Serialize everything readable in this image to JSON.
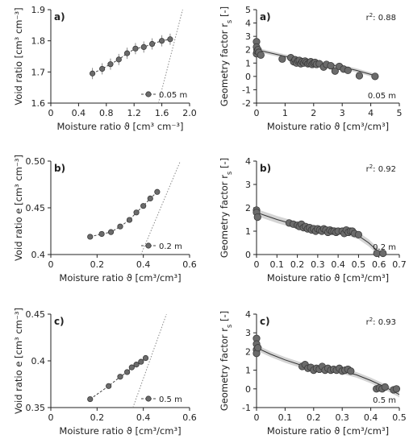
{
  "chart_data": [
    {
      "type": "scatter",
      "panel_label": "a)",
      "xlabel": "Moisture ratio ϑ [cm³ cm⁻³]",
      "ylabel": "Void ratio [cm³ cm⁻³]",
      "xlim": [
        0,
        2.0
      ],
      "ylim": [
        1.6,
        1.9
      ],
      "xticks": [
        "0",
        "0.4",
        "0.8",
        "1.2",
        "1.6",
        "2.0"
      ],
      "yticks": [
        "1.6",
        "1.7",
        "1.8",
        "1.9"
      ],
      "legend": "0.05 m",
      "legend_position": "bottom-right",
      "series": [
        {
          "x": [
            0.6,
            0.74,
            0.86,
            0.98,
            1.1,
            1.22,
            1.34,
            1.46,
            1.6,
            1.72
          ],
          "y": [
            1.695,
            1.71,
            1.725,
            1.74,
            1.76,
            1.775,
            1.78,
            1.79,
            1.8,
            1.805
          ],
          "yerr": 0.018
        }
      ],
      "saturation_line": {
        "x": [
          1.55,
          1.9
        ],
        "y": [
          1.6,
          1.9
        ]
      }
    },
    {
      "type": "scatter",
      "panel_label": "a)",
      "xlabel": "Moisture ratio ϑ [cm³/cm³]",
      "ylabel": "Geometry factor r",
      "ylabel_sub": "s",
      "ylabel_tail": " [-]",
      "r2_prefix": "r",
      "r2_text": ": 0.88",
      "xlim": [
        0,
        5
      ],
      "ylim": [
        -2,
        5
      ],
      "xticks": [
        "0",
        "1",
        "2",
        "3",
        "4",
        "5"
      ],
      "yticks": [
        "-2",
        "-1",
        "0",
        "1",
        "2",
        "3",
        "4",
        "5"
      ],
      "annotation": "0.05 m",
      "series": [
        {
          "x": [
            0,
            0,
            0,
            0.02,
            0.05,
            0.08,
            0.15,
            0.9,
            1.2,
            1.3,
            1.35,
            1.4,
            1.45,
            1.5,
            1.55,
            1.6,
            1.65,
            1.7,
            1.75,
            1.8,
            1.85,
            1.9,
            1.95,
            2.0,
            2.05,
            2.1,
            2.2,
            2.35,
            2.45,
            2.6,
            2.75,
            2.9,
            3.05,
            3.2,
            3.6,
            4.15
          ],
          "y": [
            2.6,
            2.2,
            1.7,
            1.9,
            2.0,
            1.8,
            1.6,
            1.3,
            1.4,
            1.1,
            1.25,
            1.0,
            1.15,
            1.2,
            0.95,
            1.1,
            1.0,
            1.15,
            1.05,
            0.95,
            1.0,
            1.1,
            0.9,
            1.0,
            1.05,
            0.9,
            0.95,
            0.7,
            0.9,
            0.8,
            0.4,
            0.75,
            0.55,
            0.45,
            0.05,
            0.0
          ]
        }
      ],
      "fit": {
        "x": [
          0,
          0.5,
          1,
          1.5,
          2,
          2.5,
          3,
          3.5,
          4,
          4.2
        ],
        "y": [
          2.0,
          1.75,
          1.5,
          1.3,
          1.1,
          0.9,
          0.7,
          0.45,
          0.15,
          0.0
        ]
      }
    },
    {
      "type": "scatter",
      "panel_label": "b)",
      "xlabel": "Moisture ratio ϑ [cm³/cm³]",
      "ylabel": "Void ratio e [cm³ cm⁻³]",
      "xlim": [
        0,
        0.6
      ],
      "ylim": [
        0.4,
        0.5
      ],
      "xticks": [
        "0",
        "0.2",
        "0.4",
        "0.6"
      ],
      "yticks": [
        "0.4",
        "0.45",
        "0.50"
      ],
      "legend": "0.2 m",
      "legend_position": "bottom-right",
      "series": [
        {
          "x": [
            0.17,
            0.22,
            0.26,
            0.3,
            0.34,
            0.37,
            0.4,
            0.43,
            0.46
          ],
          "y": [
            0.419,
            0.422,
            0.424,
            0.43,
            0.437,
            0.445,
            0.452,
            0.46,
            0.467
          ],
          "yerr": 0.002
        }
      ],
      "saturation_line": {
        "x": [
          0.39,
          0.56
        ],
        "y": [
          0.4,
          0.5
        ]
      }
    },
    {
      "type": "scatter",
      "panel_label": "b)",
      "xlabel": "Moisture ratio ϑ [cm³/cm³]",
      "ylabel": "Geometry factor r",
      "ylabel_sub": "s",
      "ylabel_tail": " [-]",
      "r2_prefix": "r",
      "r2_text": ": 0.92",
      "xlim": [
        0,
        0.7
      ],
      "ylim": [
        0,
        4
      ],
      "xticks": [
        "0",
        "0.1",
        "0.2",
        "0.3",
        "0.4",
        "0.5",
        "0.6",
        "0.7"
      ],
      "yticks": [
        "0",
        "1",
        "2",
        "3",
        "4"
      ],
      "annotation": "0.2 m",
      "series": [
        {
          "x": [
            0,
            0,
            0.005,
            0.16,
            0.18,
            0.2,
            0.21,
            0.22,
            0.23,
            0.24,
            0.25,
            0.26,
            0.27,
            0.28,
            0.29,
            0.3,
            0.31,
            0.32,
            0.33,
            0.34,
            0.35,
            0.36,
            0.37,
            0.38,
            0.39,
            0.4,
            0.42,
            0.43,
            0.44,
            0.45,
            0.46,
            0.47,
            0.48,
            0.5,
            0.59,
            0.62
          ],
          "y": [
            1.9,
            1.8,
            1.6,
            1.35,
            1.3,
            1.25,
            1.2,
            1.3,
            1.15,
            1.2,
            1.1,
            1.15,
            1.05,
            1.1,
            1.0,
            1.1,
            1.05,
            1.0,
            1.1,
            1.05,
            0.95,
            1.05,
            1.0,
            1.0,
            0.95,
            1.0,
            1.0,
            0.9,
            1.05,
            0.95,
            1.0,
            1.0,
            0.9,
            0.85,
            0.05,
            0.05
          ]
        }
      ],
      "fit": {
        "x": [
          0,
          0.1,
          0.2,
          0.3,
          0.4,
          0.45,
          0.5,
          0.55,
          0.6,
          0.62
        ],
        "y": [
          1.8,
          1.5,
          1.25,
          1.1,
          1.0,
          0.95,
          0.8,
          0.5,
          0.1,
          0.0
        ]
      }
    },
    {
      "type": "scatter",
      "panel_label": "c)",
      "xlabel": "Moisture ratio ϑ [cm³/cm³]",
      "ylabel": "Void ratio e [cm³ cm⁻³]",
      "xlim": [
        0,
        0.6
      ],
      "ylim": [
        0.35,
        0.45
      ],
      "xticks": [
        "0",
        "0.2",
        "0.4",
        "0.6"
      ],
      "yticks": [
        "0.35",
        "0.4",
        "0.45"
      ],
      "legend": "0.5 m",
      "legend_position": "bottom-right",
      "series": [
        {
          "x": [
            0.17,
            0.25,
            0.3,
            0.33,
            0.35,
            0.37,
            0.39,
            0.41
          ],
          "y": [
            0.359,
            0.373,
            0.383,
            0.388,
            0.393,
            0.396,
            0.399,
            0.403
          ],
          "yerr": 0.002
        }
      ],
      "saturation_line": {
        "x": [
          0.355,
          0.5
        ],
        "y": [
          0.35,
          0.45
        ]
      }
    },
    {
      "type": "scatter",
      "panel_label": "c)",
      "xlabel": "Moisture ratio ϑ [cm³/cm³]",
      "ylabel": "Geometry factor r",
      "ylabel_sub": "s",
      "ylabel_tail": " [-]",
      "r2_prefix": "r",
      "r2_text": ": 0.93",
      "xlim": [
        0,
        0.5
      ],
      "ylim": [
        -1,
        4
      ],
      "xticks": [
        "0",
        "0.1",
        "0.2",
        "0.3",
        "0.4",
        "0.5"
      ],
      "yticks": [
        "-1",
        "0",
        "1",
        "2",
        "3",
        "4"
      ],
      "annotation": "0.5 m",
      "series": [
        {
          "x": [
            0,
            0,
            0,
            0,
            0.005,
            0.16,
            0.17,
            0.18,
            0.19,
            0.2,
            0.21,
            0.22,
            0.23,
            0.24,
            0.25,
            0.26,
            0.27,
            0.28,
            0.29,
            0.3,
            0.31,
            0.32,
            0.33,
            0.42,
            0.43,
            0.44,
            0.45,
            0.48,
            0.49
          ],
          "y": [
            2.7,
            2.4,
            2.1,
            1.9,
            2.2,
            1.2,
            1.3,
            1.1,
            1.15,
            1.0,
            1.1,
            1.05,
            1.2,
            1.0,
            1.1,
            1.0,
            1.05,
            1.0,
            1.1,
            0.95,
            1.0,
            1.05,
            0.95,
            0.0,
            0.05,
            0.0,
            0.1,
            -0.05,
            0.0
          ]
        }
      ],
      "fit": {
        "x": [
          0,
          0.05,
          0.1,
          0.15,
          0.2,
          0.25,
          0.3,
          0.35,
          0.4,
          0.45,
          0.5
        ],
        "y": [
          2.2,
          1.85,
          1.55,
          1.3,
          1.15,
          1.05,
          0.95,
          0.75,
          0.45,
          0.1,
          -0.3
        ]
      }
    }
  ]
}
